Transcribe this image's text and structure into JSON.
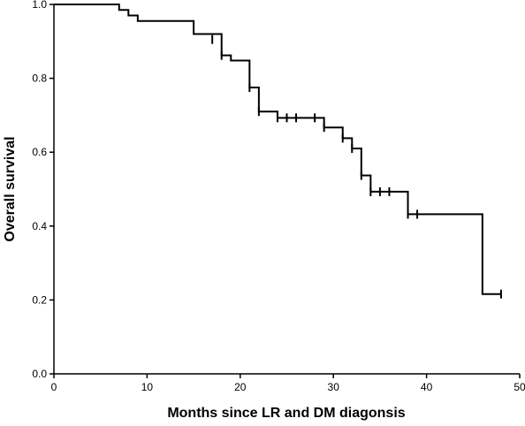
{
  "chart_data": {
    "type": "line",
    "subtype": "step",
    "title": "",
    "xlabel": "Months since LR and DM diagonsis",
    "ylabel": "Overall survival",
    "xlim": [
      0,
      50
    ],
    "ylim": [
      0.0,
      1.0
    ],
    "x_ticks": [
      0,
      10,
      20,
      30,
      40,
      50
    ],
    "y_ticks": [
      0.0,
      0.2,
      0.4,
      0.6,
      0.8,
      1.0
    ],
    "x_tick_labels": [
      "0",
      "10",
      "20",
      "30",
      "40",
      "50"
    ],
    "y_tick_labels": [
      "0.0",
      "0.2",
      "0.4",
      "0.6",
      "0.8",
      "1.0"
    ],
    "grid": false,
    "legend": "none",
    "line_color": "#000000",
    "series": [
      {
        "steps": [
          {
            "x": 0,
            "y": 1.0
          },
          {
            "x": 7,
            "y": 0.985
          },
          {
            "x": 8,
            "y": 0.97
          },
          {
            "x": 9,
            "y": 0.955
          },
          {
            "x": 15,
            "y": 0.92
          },
          {
            "x": 18,
            "y": 0.862
          },
          {
            "x": 19,
            "y": 0.848
          },
          {
            "x": 21,
            "y": 0.775
          },
          {
            "x": 22,
            "y": 0.71
          },
          {
            "x": 24,
            "y": 0.693
          },
          {
            "x": 29,
            "y": 0.667
          },
          {
            "x": 31,
            "y": 0.638
          },
          {
            "x": 32,
            "y": 0.61
          },
          {
            "x": 33,
            "y": 0.537
          },
          {
            "x": 34,
            "y": 0.493
          },
          {
            "x": 38,
            "y": 0.432
          },
          {
            "x": 46,
            "y": 0.216
          }
        ],
        "end_x": 48,
        "censored": [
          {
            "x": 17,
            "y": 0.905
          },
          {
            "x": 18,
            "y": 0.862
          },
          {
            "x": 21,
            "y": 0.775
          },
          {
            "x": 22,
            "y": 0.71
          },
          {
            "x": 24,
            "y": 0.693
          },
          {
            "x": 25,
            "y": 0.693
          },
          {
            "x": 26,
            "y": 0.693
          },
          {
            "x": 28,
            "y": 0.693
          },
          {
            "x": 29,
            "y": 0.667
          },
          {
            "x": 31,
            "y": 0.638
          },
          {
            "x": 32,
            "y": 0.61
          },
          {
            "x": 33,
            "y": 0.537
          },
          {
            "x": 34,
            "y": 0.493
          },
          {
            "x": 35,
            "y": 0.493
          },
          {
            "x": 36,
            "y": 0.493
          },
          {
            "x": 38,
            "y": 0.432
          },
          {
            "x": 39,
            "y": 0.432
          },
          {
            "x": 48,
            "y": 0.216
          }
        ]
      }
    ]
  }
}
